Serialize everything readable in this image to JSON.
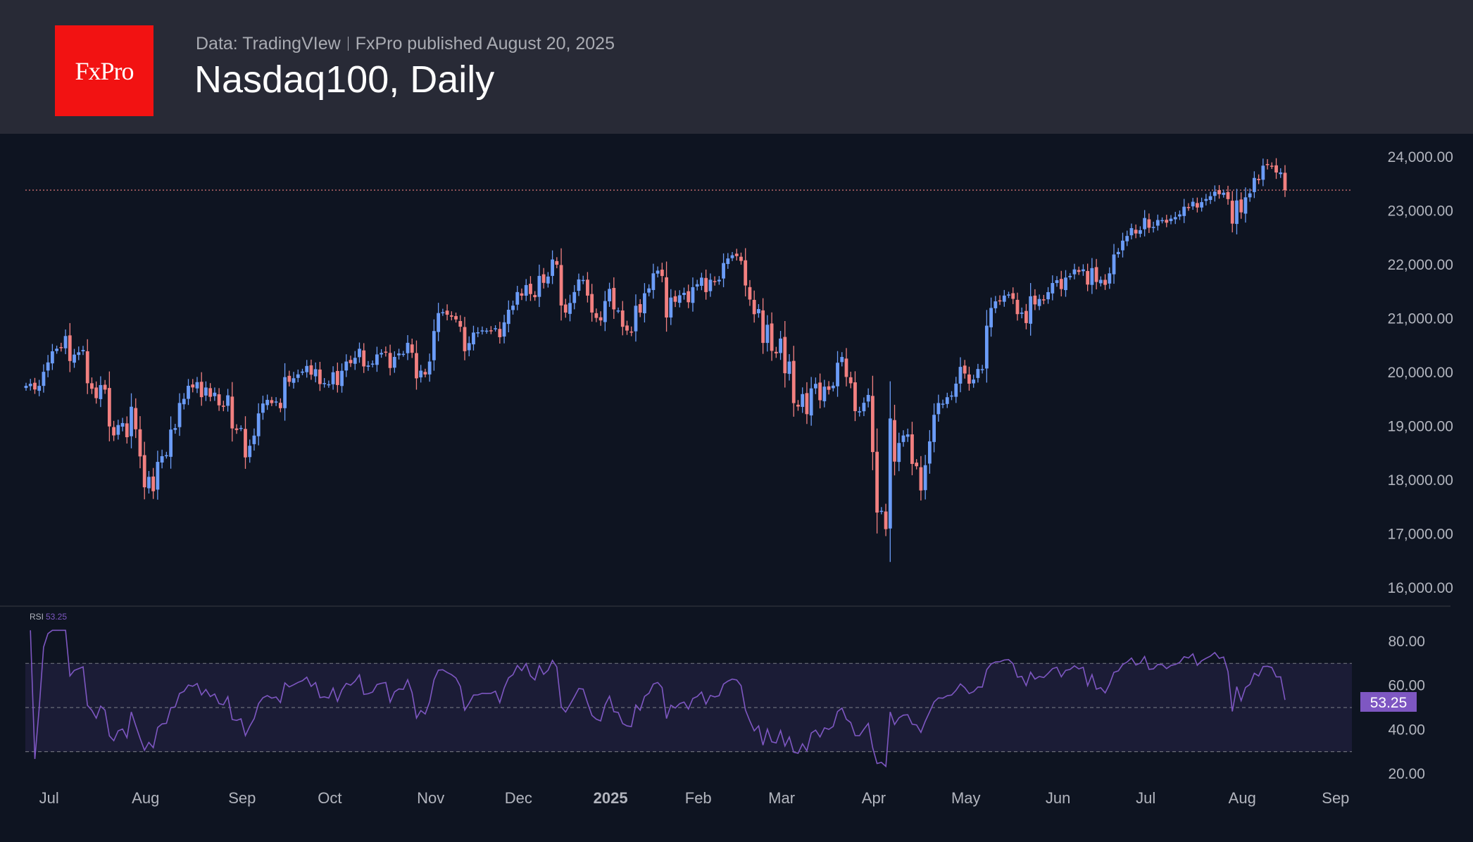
{
  "header": {
    "logo_text": "FxPro",
    "source": "Data: TradingVIew",
    "published": "FxPro published August 20, 2025",
    "title": "Nasdaq100, Daily"
  },
  "chart_data": {
    "type": "candlestick",
    "title": "Nasdaq100, Daily",
    "colors": {
      "up": "#6b9cf7",
      "down": "#f28080",
      "rsi": "#7e57c2",
      "last_price_line": "#f28080"
    },
    "price_axis": {
      "range": [
        15800,
        24300
      ],
      "ticks": [
        "16,000.00",
        "17,000.00",
        "18,000.00",
        "19,000.00",
        "20,000.00",
        "21,000.00",
        "22,000.00",
        "23,000.00",
        "24,000.00"
      ],
      "tick_values": [
        16000,
        17000,
        18000,
        19000,
        20000,
        21000,
        22000,
        23000,
        24000
      ]
    },
    "x_ticks": [
      {
        "label": "Jul",
        "month": "2024-07"
      },
      {
        "label": "Aug",
        "month": "2024-08"
      },
      {
        "label": "Sep",
        "month": "2024-09"
      },
      {
        "label": "Oct",
        "month": "2024-10"
      },
      {
        "label": "Nov",
        "month": "2024-11"
      },
      {
        "label": "Dec",
        "month": "2024-12"
      },
      {
        "label": "2025",
        "month": "2025-01"
      },
      {
        "label": "Feb",
        "month": "2025-02"
      },
      {
        "label": "Mar",
        "month": "2025-03"
      },
      {
        "label": "Apr",
        "month": "2025-04"
      },
      {
        "label": "May",
        "month": "2025-05"
      },
      {
        "label": "Jun",
        "month": "2025-06"
      },
      {
        "label": "Jul",
        "month": "2025-07"
      },
      {
        "label": "Aug",
        "month": "2025-08"
      },
      {
        "label": "Sep",
        "month": "2025-09"
      }
    ],
    "rsi": {
      "label": "RSI",
      "value": "53.25",
      "period": 14,
      "range": [
        20,
        80
      ],
      "ticks": [
        "20.00",
        "40.00",
        "60.00",
        "80.00"
      ],
      "tick_values": [
        20,
        40,
        60,
        80
      ],
      "bands": [
        30,
        50,
        70
      ]
    },
    "closes": [
      [
        "2024-06-26",
        19751
      ],
      [
        "2024-06-27",
        19790
      ],
      [
        "2024-06-28",
        19683
      ],
      [
        "2024-07-01",
        19750
      ],
      [
        "2024-07-02",
        20011
      ],
      [
        "2024-07-03",
        20186
      ],
      [
        "2024-07-05",
        20392
      ],
      [
        "2024-07-08",
        20440
      ],
      [
        "2024-07-09",
        20460
      ],
      [
        "2024-07-10",
        20676
      ],
      [
        "2024-07-11",
        20211
      ],
      [
        "2024-07-12",
        20331
      ],
      [
        "2024-07-15",
        20374
      ],
      [
        "2024-07-16",
        20417
      ],
      [
        "2024-07-17",
        19799
      ],
      [
        "2024-07-18",
        19696
      ],
      [
        "2024-07-19",
        19522
      ],
      [
        "2024-07-22",
        19765
      ],
      [
        "2024-07-23",
        19681
      ],
      [
        "2024-07-24",
        18997
      ],
      [
        "2024-07-25",
        18830
      ],
      [
        "2024-07-26",
        19023
      ],
      [
        "2024-07-29",
        19060
      ],
      [
        "2024-07-30",
        18797
      ],
      [
        "2024-07-31",
        19363
      ],
      [
        "2024-08-01",
        18944
      ],
      [
        "2024-08-02",
        18440
      ],
      [
        "2024-08-05",
        17867
      ],
      [
        "2024-08-06",
        18061
      ],
      [
        "2024-08-07",
        17794
      ],
      [
        "2024-08-08",
        18339
      ],
      [
        "2024-08-09",
        18445
      ],
      [
        "2024-08-12",
        18463
      ],
      [
        "2024-08-13",
        18939
      ],
      [
        "2024-08-14",
        18966
      ],
      [
        "2024-08-15",
        19433
      ],
      [
        "2024-08-16",
        19509
      ],
      [
        "2024-08-19",
        19752
      ],
      [
        "2024-08-20",
        19721
      ],
      [
        "2024-08-21",
        19820
      ],
      [
        "2024-08-22",
        19541
      ],
      [
        "2024-08-23",
        19720
      ],
      [
        "2024-08-26",
        19547
      ],
      [
        "2024-08-27",
        19624
      ],
      [
        "2024-08-28",
        19389
      ],
      [
        "2024-08-29",
        19362
      ],
      [
        "2024-08-30",
        19575
      ],
      [
        "2024-09-03",
        18960
      ],
      [
        "2024-09-04",
        18930
      ],
      [
        "2024-09-05",
        18969
      ],
      [
        "2024-09-06",
        18422
      ],
      [
        "2024-09-09",
        18638
      ],
      [
        "2024-09-10",
        18827
      ],
      [
        "2024-09-11",
        19239
      ],
      [
        "2024-09-12",
        19423
      ],
      [
        "2024-09-13",
        19491
      ],
      [
        "2024-09-16",
        19430
      ],
      [
        "2024-09-17",
        19460
      ],
      [
        "2024-09-18",
        19336
      ],
      [
        "2024-09-19",
        19913
      ],
      [
        "2024-09-20",
        19825
      ],
      [
        "2024-09-23",
        19892
      ],
      [
        "2024-09-24",
        19964
      ],
      [
        "2024-09-25",
        20016
      ],
      [
        "2024-09-26",
        20120
      ],
      [
        "2024-09-27",
        19958
      ],
      [
        "2024-09-30",
        20060
      ],
      [
        "2024-10-01",
        19784
      ],
      [
        "2024-10-02",
        19802
      ],
      [
        "2024-10-03",
        19780
      ],
      [
        "2024-10-04",
        20003
      ],
      [
        "2024-10-07",
        19766
      ],
      [
        "2024-10-08",
        20030
      ],
      [
        "2024-10-09",
        20202
      ],
      [
        "2024-10-10",
        20172
      ],
      [
        "2024-10-11",
        20271
      ],
      [
        "2024-10-14",
        20439
      ],
      [
        "2024-10-15",
        20111
      ],
      [
        "2024-10-16",
        20128
      ],
      [
        "2024-10-17",
        20164
      ],
      [
        "2024-10-18",
        20334
      ],
      [
        "2024-10-21",
        20362
      ],
      [
        "2024-10-22",
        20380
      ],
      [
        "2024-10-23",
        20082
      ],
      [
        "2024-10-24",
        20288
      ],
      [
        "2024-10-25",
        20352
      ],
      [
        "2024-10-28",
        20345
      ],
      [
        "2024-10-29",
        20550
      ],
      [
        "2024-10-30",
        20365
      ],
      [
        "2024-10-31",
        19890
      ],
      [
        "2024-11-01",
        20033
      ],
      [
        "2024-11-04",
        19962
      ],
      [
        "2024-11-05",
        20202
      ],
      [
        "2024-11-06",
        20769
      ],
      [
        "2024-11-07",
        21102
      ],
      [
        "2024-11-08",
        21118
      ],
      [
        "2024-11-11",
        21071
      ],
      [
        "2024-11-12",
        21035
      ],
      [
        "2024-11-13",
        20984
      ],
      [
        "2024-11-14",
        20849
      ],
      [
        "2024-11-15",
        20394
      ],
      [
        "2024-11-18",
        20545
      ],
      [
        "2024-11-19",
        20740
      ],
      [
        "2024-11-20",
        20745
      ],
      [
        "2024-11-21",
        20780
      ],
      [
        "2024-11-22",
        20776
      ],
      [
        "2024-11-25",
        20780
      ],
      [
        "2024-11-26",
        20820
      ],
      [
        "2024-11-27",
        20654
      ],
      [
        "2024-11-29",
        20930
      ],
      [
        "2024-12-02",
        21164
      ],
      [
        "2024-12-03",
        21240
      ],
      [
        "2024-12-04",
        21492
      ],
      [
        "2024-12-05",
        21425
      ],
      [
        "2024-12-06",
        21622
      ],
      [
        "2024-12-09",
        21455
      ],
      [
        "2024-12-10",
        21397
      ],
      [
        "2024-12-11",
        21792
      ],
      [
        "2024-12-12",
        21663
      ],
      [
        "2024-12-13",
        21780
      ],
      [
        "2024-12-16",
        22097
      ],
      [
        "2024-12-17",
        22000
      ],
      [
        "2024-12-18",
        21243
      ],
      [
        "2024-12-19",
        21111
      ],
      [
        "2024-12-20",
        21289
      ],
      [
        "2024-12-23",
        21492
      ],
      [
        "2024-12-24",
        21727
      ],
      [
        "2024-12-26",
        21716
      ],
      [
        "2024-12-27",
        21426
      ],
      [
        "2024-12-30",
        21112
      ],
      [
        "2024-12-31",
        21012
      ],
      [
        "2025-01-02",
        20965
      ],
      [
        "2025-01-03",
        21326
      ],
      [
        "2025-01-06",
        21551
      ],
      [
        "2025-01-07",
        21171
      ],
      [
        "2025-01-08",
        21150
      ],
      [
        "2025-01-10",
        20847
      ],
      [
        "2025-01-13",
        20777
      ],
      [
        "2025-01-14",
        20757
      ],
      [
        "2025-01-15",
        21238
      ],
      [
        "2025-01-16",
        21110
      ],
      [
        "2025-01-17",
        21470
      ],
      [
        "2025-01-21",
        21560
      ],
      [
        "2025-01-22",
        21840
      ],
      [
        "2025-01-23",
        21890
      ],
      [
        "2025-01-24",
        21790
      ],
      [
        "2025-01-27",
        21020
      ],
      [
        "2025-01-28",
        21390
      ],
      [
        "2025-01-29",
        21311
      ],
      [
        "2025-01-30",
        21432
      ],
      [
        "2025-01-31",
        21478
      ],
      [
        "2025-02-03",
        21303
      ],
      [
        "2025-02-04",
        21583
      ],
      [
        "2025-02-05",
        21638
      ],
      [
        "2025-02-06",
        21760
      ],
      [
        "2025-02-07",
        21491
      ],
      [
        "2025-02-10",
        21721
      ],
      [
        "2025-02-11",
        21690
      ],
      [
        "2025-02-12",
        21720
      ],
      [
        "2025-02-13",
        22031
      ],
      [
        "2025-02-14",
        22116
      ],
      [
        "2025-02-18",
        22175
      ],
      [
        "2025-02-19",
        22160
      ],
      [
        "2025-02-20",
        22070
      ],
      [
        "2025-02-21",
        21614
      ],
      [
        "2025-02-24",
        21353
      ],
      [
        "2025-02-25",
        21081
      ],
      [
        "2025-02-26",
        21176
      ],
      [
        "2025-02-27",
        20548
      ],
      [
        "2025-02-28",
        20885
      ],
      [
        "2025-03-03",
        20400
      ],
      [
        "2025-03-04",
        20354
      ],
      [
        "2025-03-05",
        20629
      ],
      [
        "2025-03-06",
        19985
      ],
      [
        "2025-03-07",
        20202
      ],
      [
        "2025-03-10",
        19430
      ],
      [
        "2025-03-11",
        19366
      ],
      [
        "2025-03-12",
        19598
      ],
      [
        "2025-03-13",
        19225
      ],
      [
        "2025-03-14",
        19704
      ],
      [
        "2025-03-17",
        19788
      ],
      [
        "2025-03-18",
        19483
      ],
      [
        "2025-03-19",
        19736
      ],
      [
        "2025-03-20",
        19677
      ],
      [
        "2025-03-21",
        19754
      ],
      [
        "2025-03-24",
        20180
      ],
      [
        "2025-03-25",
        20287
      ],
      [
        "2025-03-26",
        19916
      ],
      [
        "2025-03-27",
        19798
      ],
      [
        "2025-03-28",
        19281
      ],
      [
        "2025-03-31",
        19279
      ],
      [
        "2025-04-01",
        19436
      ],
      [
        "2025-04-02",
        19582
      ],
      [
        "2025-04-03",
        18521
      ],
      [
        "2025-04-04",
        17398
      ],
      [
        "2025-04-07",
        17430
      ],
      [
        "2025-04-08",
        17090
      ],
      [
        "2025-04-09",
        19145
      ],
      [
        "2025-04-10",
        18344
      ],
      [
        "2025-04-11",
        18690
      ],
      [
        "2025-04-14",
        18829
      ],
      [
        "2025-04-15",
        18850
      ],
      [
        "2025-04-16",
        18301
      ],
      [
        "2025-04-17",
        18258
      ],
      [
        "2025-04-21",
        17808
      ],
      [
        "2025-04-22",
        18277
      ],
      [
        "2025-04-23",
        18720
      ],
      [
        "2025-04-24",
        19213
      ],
      [
        "2025-04-25",
        19432
      ],
      [
        "2025-04-28",
        19420
      ],
      [
        "2025-04-29",
        19540
      ],
      [
        "2025-04-30",
        19571
      ],
      [
        "2025-05-01",
        19792
      ],
      [
        "2025-05-02",
        20103
      ],
      [
        "2025-05-05",
        19980
      ],
      [
        "2025-05-06",
        19791
      ],
      [
        "2025-05-07",
        19867
      ],
      [
        "2025-05-08",
        20064
      ],
      [
        "2025-05-09",
        20061
      ],
      [
        "2025-05-12",
        20868
      ],
      [
        "2025-05-13",
        21197
      ],
      [
        "2025-05-14",
        21320
      ],
      [
        "2025-05-15",
        21336
      ],
      [
        "2025-05-16",
        21427
      ],
      [
        "2025-05-19",
        21447
      ],
      [
        "2025-05-20",
        21366
      ],
      [
        "2025-05-21",
        21082
      ],
      [
        "2025-05-22",
        21112
      ],
      [
        "2025-05-23",
        20916
      ],
      [
        "2025-05-27",
        21414
      ],
      [
        "2025-05-28",
        21263
      ],
      [
        "2025-05-29",
        21363
      ],
      [
        "2025-05-30",
        21340
      ],
      [
        "2025-06-02",
        21491
      ],
      [
        "2025-06-03",
        21660
      ],
      [
        "2025-06-04",
        21712
      ],
      [
        "2025-06-05",
        21547
      ],
      [
        "2025-06-06",
        21761
      ],
      [
        "2025-06-09",
        21792
      ],
      [
        "2025-06-10",
        21913
      ],
      [
        "2025-06-11",
        21867
      ],
      [
        "2025-06-12",
        21913
      ],
      [
        "2025-06-13",
        21631
      ],
      [
        "2025-06-16",
        21937
      ],
      [
        "2025-06-17",
        21679
      ],
      [
        "2025-06-18",
        21719
      ],
      [
        "2025-06-20",
        21626
      ],
      [
        "2025-06-23",
        21840
      ],
      [
        "2025-06-24",
        22190
      ],
      [
        "2025-06-25",
        22237
      ],
      [
        "2025-06-26",
        22447
      ],
      [
        "2025-06-27",
        22534
      ],
      [
        "2025-06-30",
        22679
      ],
      [
        "2025-07-01",
        22580
      ],
      [
        "2025-07-02",
        22641
      ],
      [
        "2025-07-03",
        22867
      ],
      [
        "2025-07-07",
        22686
      ],
      [
        "2025-07-08",
        22701
      ],
      [
        "2025-07-09",
        22830
      ],
      [
        "2025-07-10",
        22828
      ],
      [
        "2025-07-11",
        22780
      ],
      [
        "2025-07-14",
        22855
      ],
      [
        "2025-07-15",
        22884
      ],
      [
        "2025-07-16",
        22934
      ],
      [
        "2025-07-17",
        23077
      ],
      [
        "2025-07-18",
        23065
      ],
      [
        "2025-07-21",
        23169
      ],
      [
        "2025-07-22",
        23062
      ],
      [
        "2025-07-23",
        23162
      ],
      [
        "2025-07-24",
        23220
      ],
      [
        "2025-07-25",
        23272
      ],
      [
        "2025-07-28",
        23356
      ],
      [
        "2025-07-29",
        23309
      ],
      [
        "2025-07-30",
        23337
      ],
      [
        "2025-07-31",
        23218
      ],
      [
        "2025-08-01",
        22763
      ],
      [
        "2025-08-04",
        23193
      ],
      [
        "2025-08-05",
        22972
      ],
      [
        "2025-08-06",
        23251
      ],
      [
        "2025-08-07",
        23325
      ],
      [
        "2025-08-08",
        23611
      ],
      [
        "2025-08-11",
        23571
      ],
      [
        "2025-08-12",
        23839
      ],
      [
        "2025-08-13",
        23850
      ],
      [
        "2025-08-14",
        23833
      ],
      [
        "2025-08-15",
        23712
      ],
      [
        "2025-08-18",
        23713
      ],
      [
        "2025-08-19",
        23385
      ]
    ]
  }
}
